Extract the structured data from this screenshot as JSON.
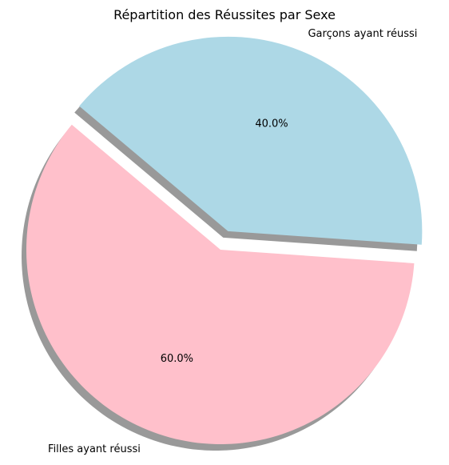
{
  "chart_data": {
    "type": "pie",
    "title": "Répartition des Réussites par Sexe",
    "slices": [
      {
        "label": "Filles ayant réussi",
        "value": 60,
        "pct_label": "60.0%",
        "color": "#ffc0cb",
        "exploded": false
      },
      {
        "label": "Garçons ayant réussi",
        "value": 40,
        "pct_label": "40.0%",
        "color": "#add8e6",
        "exploded": true
      }
    ],
    "shadow": true,
    "legend": "none"
  }
}
